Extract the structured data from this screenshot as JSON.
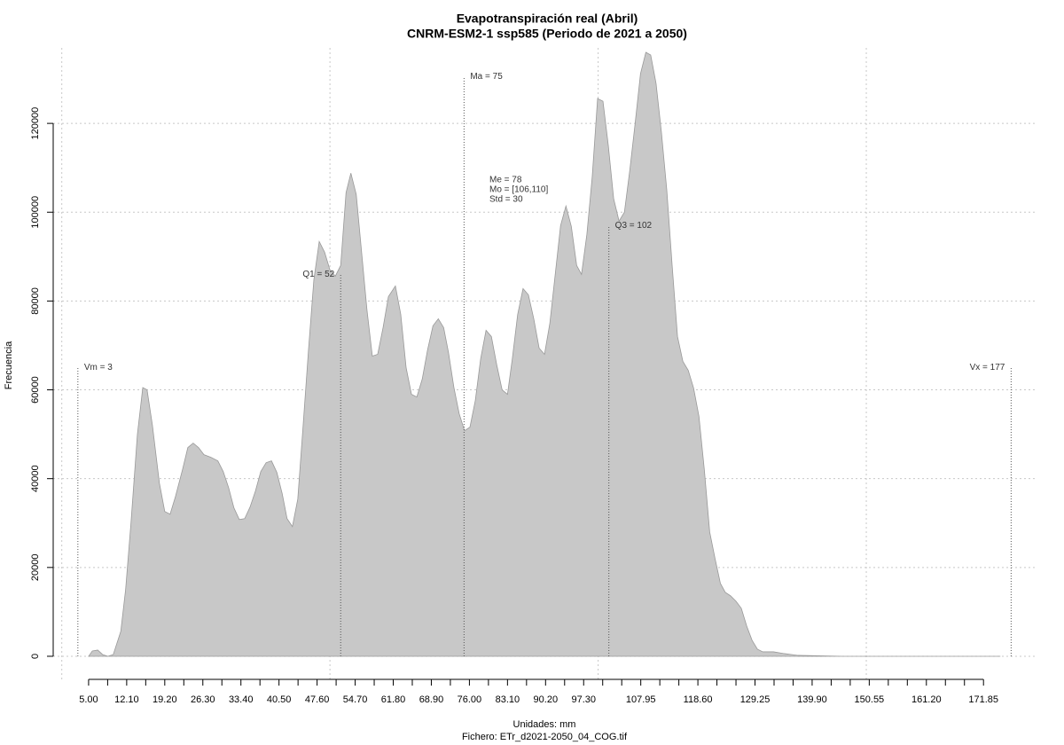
{
  "chart_data": {
    "type": "area",
    "title": "Evapotranspiración real (Abril)",
    "subtitle": "CNRM-ESM2-1 ssp585 (Periodo de 2021 a 2050)",
    "x_label": "Unidades: mm",
    "caption": "Fichero: ETr_d2021-2050_04_COG.tif",
    "y_label": "Frecuencia",
    "color": "#c8c8c8",
    "line_color": "#999999",
    "grid": true,
    "xlim": [
      -1.6,
      181.9
    ],
    "ylim": [
      -5200,
      137000
    ],
    "yticks": [
      0,
      20000,
      40000,
      60000,
      80000,
      100000,
      120000
    ],
    "xgrid": [
      0,
      50,
      100,
      150
    ],
    "xticks": [
      {
        "value": 5,
        "label": "5.00"
      },
      {
        "value": 12.1,
        "label": "12.10"
      },
      {
        "value": 19.2,
        "label": "19.20"
      },
      {
        "value": 26.3,
        "label": "26.30"
      },
      {
        "value": 33.4,
        "label": "33.40"
      },
      {
        "value": 40.5,
        "label": "40.50"
      },
      {
        "value": 47.6,
        "label": "47.60"
      },
      {
        "value": 54.7,
        "label": "54.70"
      },
      {
        "value": 61.8,
        "label": "61.80"
      },
      {
        "value": 68.9,
        "label": "68.90"
      },
      {
        "value": 76,
        "label": "76.00"
      },
      {
        "value": 83.1,
        "label": "83.10"
      },
      {
        "value": 90.2,
        "label": "90.20"
      },
      {
        "value": 97.3,
        "label": "97.30"
      },
      107.95,
      {
        "value": 118.6,
        "label": "118.60"
      },
      129.25,
      {
        "value": 139.9,
        "label": "139.90"
      },
      150.55,
      {
        "value": 161.2,
        "label": "161.20"
      },
      171.85
    ],
    "xminorticks": [
      8.55,
      15.65,
      22.75,
      29.85,
      36.95,
      44.05,
      51.15,
      58.25,
      65.35,
      72.45,
      79.55,
      86.65,
      93.75,
      100.85,
      104.4,
      111.5,
      115.05,
      122.15,
      125.7,
      132.8,
      136.35,
      143.45,
      147,
      154.1,
      157.65,
      164.75,
      168.3
    ],
    "x": [
      5.0,
      5.7,
      6.7,
      7.6,
      8.6,
      9.6,
      11.0,
      11.9,
      12.9,
      14.1,
      15.1,
      15.9,
      16.9,
      18.2,
      19.2,
      20.2,
      21.2,
      22.5,
      23.5,
      24.5,
      25.5,
      26.5,
      27.8,
      29.1,
      30.1,
      31.1,
      32.1,
      33.1,
      34.1,
      35.1,
      36.1,
      37.1,
      38.1,
      39.1,
      40.1,
      41.1,
      42.0,
      43.0,
      44.0,
      45.0,
      46.0,
      47.0,
      48.0,
      49.0,
      50.0,
      51.0,
      52.0,
      53.0,
      53.9,
      54.9,
      55.9,
      56.9,
      57.9,
      58.9,
      59.9,
      60.9,
      62.2,
      63.2,
      64.2,
      65.2,
      66.2,
      67.2,
      68.2,
      69.2,
      70.2,
      71.2,
      72.1,
      73.1,
      74.1,
      75.1,
      76.1,
      77.1,
      78.1,
      79.1,
      80.1,
      81.1,
      82.1,
      83.1,
      84.0,
      85.0,
      86.0,
      87.0,
      88.0,
      89.0,
      90.0,
      91.0,
      92.0,
      93.0,
      94.0,
      95.0,
      96.0,
      96.9,
      97.9,
      98.9,
      99.9,
      100.9,
      101.9,
      102.9,
      103.9,
      104.9,
      105.9,
      106.9,
      107.9,
      108.9,
      109.8,
      110.8,
      111.8,
      112.8,
      113.8,
      114.8,
      115.8,
      116.8,
      117.8,
      118.8,
      119.8,
      120.8,
      121.8,
      122.8,
      123.7,
      124.7,
      125.7,
      126.7,
      127.7,
      128.7,
      129.7,
      130.7,
      132.7,
      134.7,
      137.3,
      145.6,
      163.8,
      175.0
    ],
    "values": [
      0,
      1200,
      1400,
      400,
      0,
      400,
      5600,
      15000,
      30000,
      50000,
      60500,
      60000,
      52000,
      39000,
      32600,
      32000,
      36000,
      42000,
      47000,
      48000,
      47000,
      45400,
      44800,
      44000,
      41600,
      38000,
      33400,
      30800,
      31000,
      33600,
      37200,
      41600,
      43600,
      44000,
      41400,
      36600,
      31000,
      29200,
      35400,
      52000,
      69000,
      84800,
      93400,
      91000,
      87000,
      85600,
      88000,
      104400,
      108800,
      104000,
      91000,
      78000,
      67600,
      68000,
      74000,
      81000,
      83400,
      77000,
      65000,
      59000,
      58400,
      62400,
      69000,
      74400,
      76000,
      74000,
      68400,
      60600,
      54600,
      50800,
      51600,
      57600,
      67000,
      73400,
      72000,
      65600,
      60000,
      59000,
      67000,
      77000,
      82800,
      81400,
      76000,
      69400,
      68000,
      75000,
      86000,
      97000,
      101400,
      96800,
      88000,
      86000,
      95000,
      108000,
      125600,
      125000,
      115000,
      103000,
      98000,
      100000,
      109400,
      120000,
      131200,
      136000,
      135400,
      129000,
      118000,
      105000,
      88000,
      72000,
      66400,
      64400,
      60400,
      54000,
      42000,
      28000,
      22000,
      16400,
      14400,
      13600,
      12400,
      10800,
      6800,
      3600,
      1600,
      1000,
      1000,
      600,
      200,
      0,
      0,
      0
    ],
    "markers": [
      {
        "label": "Vm = 3",
        "value": 3,
        "height": 65000,
        "anchor": "start"
      },
      {
        "label": "Q1 = 52",
        "value": 52,
        "height": 86000,
        "anchor": "end"
      },
      {
        "label": "Ma = 75",
        "value": 75,
        "height": 130500,
        "anchor": "start"
      },
      {
        "label": "Q3 = 102",
        "value": 102,
        "height": 97000,
        "anchor": "start"
      },
      {
        "label": "Vx = 177",
        "value": 177,
        "height": 65000,
        "anchor": "end"
      }
    ],
    "stats": [
      "Me = 78",
      "Mo = [106,110]",
      "Std = 30"
    ]
  }
}
